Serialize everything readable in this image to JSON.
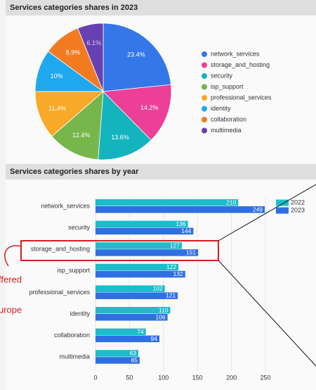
{
  "chart_data": [
    {
      "type": "pie",
      "title": "Services categories shares in 2023",
      "categories": [
        "network_services",
        "storage_and_hosting",
        "security",
        "isp_support",
        "professional_services",
        "identity",
        "collaboration",
        "multimedia"
      ],
      "values": [
        23.4,
        14.2,
        13.6,
        12.4,
        11.4,
        10,
        8.9,
        6.1
      ],
      "value_labels": [
        "23.4%",
        "14.2%",
        "13.6%",
        "12.4%",
        "11.4%",
        "10%",
        "8.9%",
        "6.1%"
      ],
      "colors": [
        "#3477e8",
        "#ec3f98",
        "#14b4bf",
        "#76b64a",
        "#f8a928",
        "#20a8ee",
        "#f27b22",
        "#6741b3"
      ],
      "legend": "right"
    },
    {
      "type": "bar",
      "orientation": "horizontal",
      "title": "Services categories shares by year",
      "categories": [
        "network_services",
        "security",
        "storage_and_hosting",
        "isp_support",
        "professional_services",
        "identity",
        "collaboration",
        "multimedia"
      ],
      "series": [
        {
          "name": "2022",
          "color": "#1cbccb",
          "values": [
            210,
            136,
            127,
            122,
            102,
            110,
            74,
            63
          ]
        },
        {
          "name": "2023",
          "color": "#2f6fe3",
          "values": [
            249,
            144,
            151,
            132,
            121,
            106,
            94,
            65
          ]
        }
      ],
      "xlim": [
        0,
        270
      ],
      "xticks": [
        0,
        50,
        100,
        150,
        200,
        250
      ],
      "legend": "top-right"
    }
  ],
  "overlay": {
    "texts": [
      "ffered",
      "urope"
    ]
  }
}
